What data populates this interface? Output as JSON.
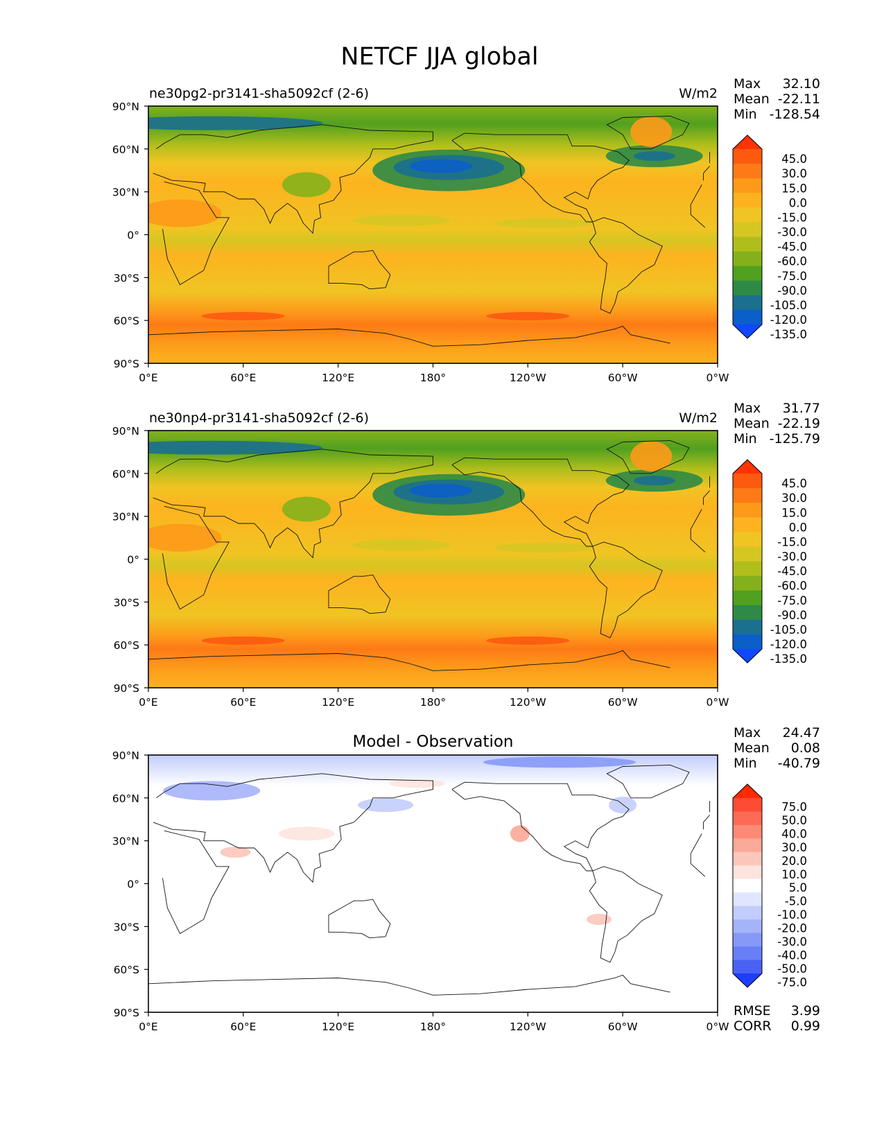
{
  "figure_title": "NETCF JJA global",
  "chart_data": [
    {
      "type": "heatmap",
      "subtitle_left": "ne30pg2-pr3141-sha5092cf (2-6)",
      "units": "W/m2",
      "stats": {
        "max_label": "Max",
        "max": "32.10",
        "mean_label": "Mean",
        "mean": "-22.11",
        "min_label": "Min",
        "min": "-128.54"
      },
      "colorbar": {
        "levels": [
          "45.0",
          "30.0",
          "15.0",
          "0.0",
          "-15.0",
          "-30.0",
          "-45.0",
          "-60.0",
          "-75.0",
          "-90.0",
          "-105.0",
          "-120.0",
          "-135.0"
        ],
        "colors": [
          "#ff3300",
          "#fd5a10",
          "#fd7a16",
          "#fd9a1a",
          "#fdb31f",
          "#f0c423",
          "#d6c622",
          "#b0be1b",
          "#84b11b",
          "#51a01f",
          "#2e8a46",
          "#1b6f8f",
          "#0a5fc8",
          "#0f48ff"
        ]
      },
      "xaxis": {
        "ticks": [
          "0°E",
          "60°E",
          "120°E",
          "180°",
          "120°W",
          "60°W",
          "0°W"
        ]
      },
      "yaxis": {
        "ticks": [
          "90°N",
          "60°N",
          "30°N",
          "0°",
          "30°S",
          "60°S",
          "90°S"
        ]
      },
      "xlim": [
        0,
        360
      ],
      "ylim": [
        -90,
        90
      ]
    },
    {
      "type": "heatmap",
      "subtitle_left": "ne30np4-pr3141-sha5092cf (2-6)",
      "units": "W/m2",
      "stats": {
        "max_label": "Max",
        "max": "31.77",
        "mean_label": "Mean",
        "mean": "-22.19",
        "min_label": "Min",
        "min": "-125.79"
      },
      "colorbar": {
        "levels": [
          "45.0",
          "30.0",
          "15.0",
          "0.0",
          "-15.0",
          "-30.0",
          "-45.0",
          "-60.0",
          "-75.0",
          "-90.0",
          "-105.0",
          "-120.0",
          "-135.0"
        ],
        "colors": [
          "#ff3300",
          "#fd5a10",
          "#fd7a16",
          "#fd9a1a",
          "#fdb31f",
          "#f0c423",
          "#d6c622",
          "#b0be1b",
          "#84b11b",
          "#51a01f",
          "#2e8a46",
          "#1b6f8f",
          "#0a5fc8",
          "#0f48ff"
        ]
      },
      "xaxis": {
        "ticks": [
          "0°E",
          "60°E",
          "120°E",
          "180°",
          "120°W",
          "60°W",
          "0°W"
        ]
      },
      "yaxis": {
        "ticks": [
          "90°N",
          "60°N",
          "30°N",
          "0°",
          "30°S",
          "60°S",
          "90°S"
        ]
      },
      "xlim": [
        0,
        360
      ],
      "ylim": [
        -90,
        90
      ]
    },
    {
      "type": "heatmap",
      "subtitle_center": "Model - Observation",
      "stats": {
        "max_label": "Max",
        "max": "24.47",
        "mean_label": "Mean",
        "mean": "0.08",
        "min_label": "Min",
        "min": "-40.79"
      },
      "bottom_stats": {
        "rmse_label": "RMSE",
        "rmse": "3.99",
        "corr_label": "CORR",
        "corr": "0.99"
      },
      "colorbar": {
        "levels": [
          "75.0",
          "50.0",
          "40.0",
          "30.0",
          "20.0",
          "10.0",
          "5.0",
          "-5.0",
          "-10.0",
          "-20.0",
          "-30.0",
          "-40.0",
          "-50.0",
          "-75.0"
        ],
        "colors": [
          "#ff2a00",
          "#fe4b33",
          "#fd6a55",
          "#fc8a77",
          "#fba998",
          "#fbc7bb",
          "#fde4de",
          "#ffffff",
          "#e0e6fd",
          "#c3cdfb",
          "#a5b3f9",
          "#8699f7",
          "#687ff5",
          "#4a62f3",
          "#1e3dff"
        ]
      },
      "xaxis": {
        "ticks": [
          "0°E",
          "60°E",
          "120°E",
          "180°",
          "120°W",
          "60°W",
          "0°W"
        ]
      },
      "yaxis": {
        "ticks": [
          "90°N",
          "60°N",
          "30°N",
          "0°",
          "30°S",
          "60°S",
          "90°S"
        ]
      },
      "xlim": [
        0,
        360
      ],
      "ylim": [
        -90,
        90
      ]
    }
  ]
}
